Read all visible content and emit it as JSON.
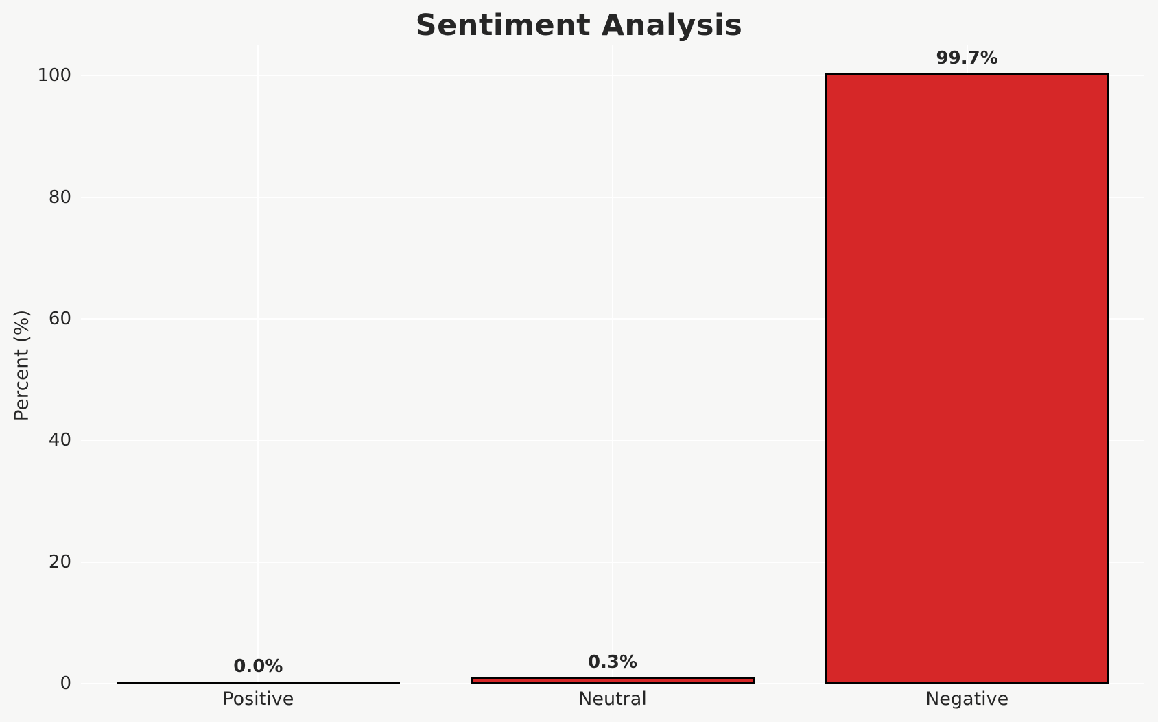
{
  "chart_data": {
    "type": "bar",
    "title": "Sentiment Analysis",
    "categories": [
      "Positive",
      "Neutral",
      "Negative"
    ],
    "values": [
      0.0,
      0.3,
      99.7
    ],
    "bar_labels": [
      "0.0%",
      "0.3%",
      "99.7%"
    ],
    "xlabel": "",
    "ylabel": "Percent (%)",
    "ylim": [
      0,
      105
    ],
    "yticks": [
      0,
      20,
      40,
      60,
      80,
      100
    ],
    "ytick_labels": [
      "0",
      "20",
      "40",
      "60",
      "80",
      "100"
    ],
    "grid": true,
    "legend": false,
    "bar_width_fraction": 0.8,
    "colors": {
      "bar_fill": "#d62728",
      "bar_edge": "#000000",
      "background": "#f7f7f6",
      "gridline": "#ffffff",
      "text": "#262626"
    }
  }
}
